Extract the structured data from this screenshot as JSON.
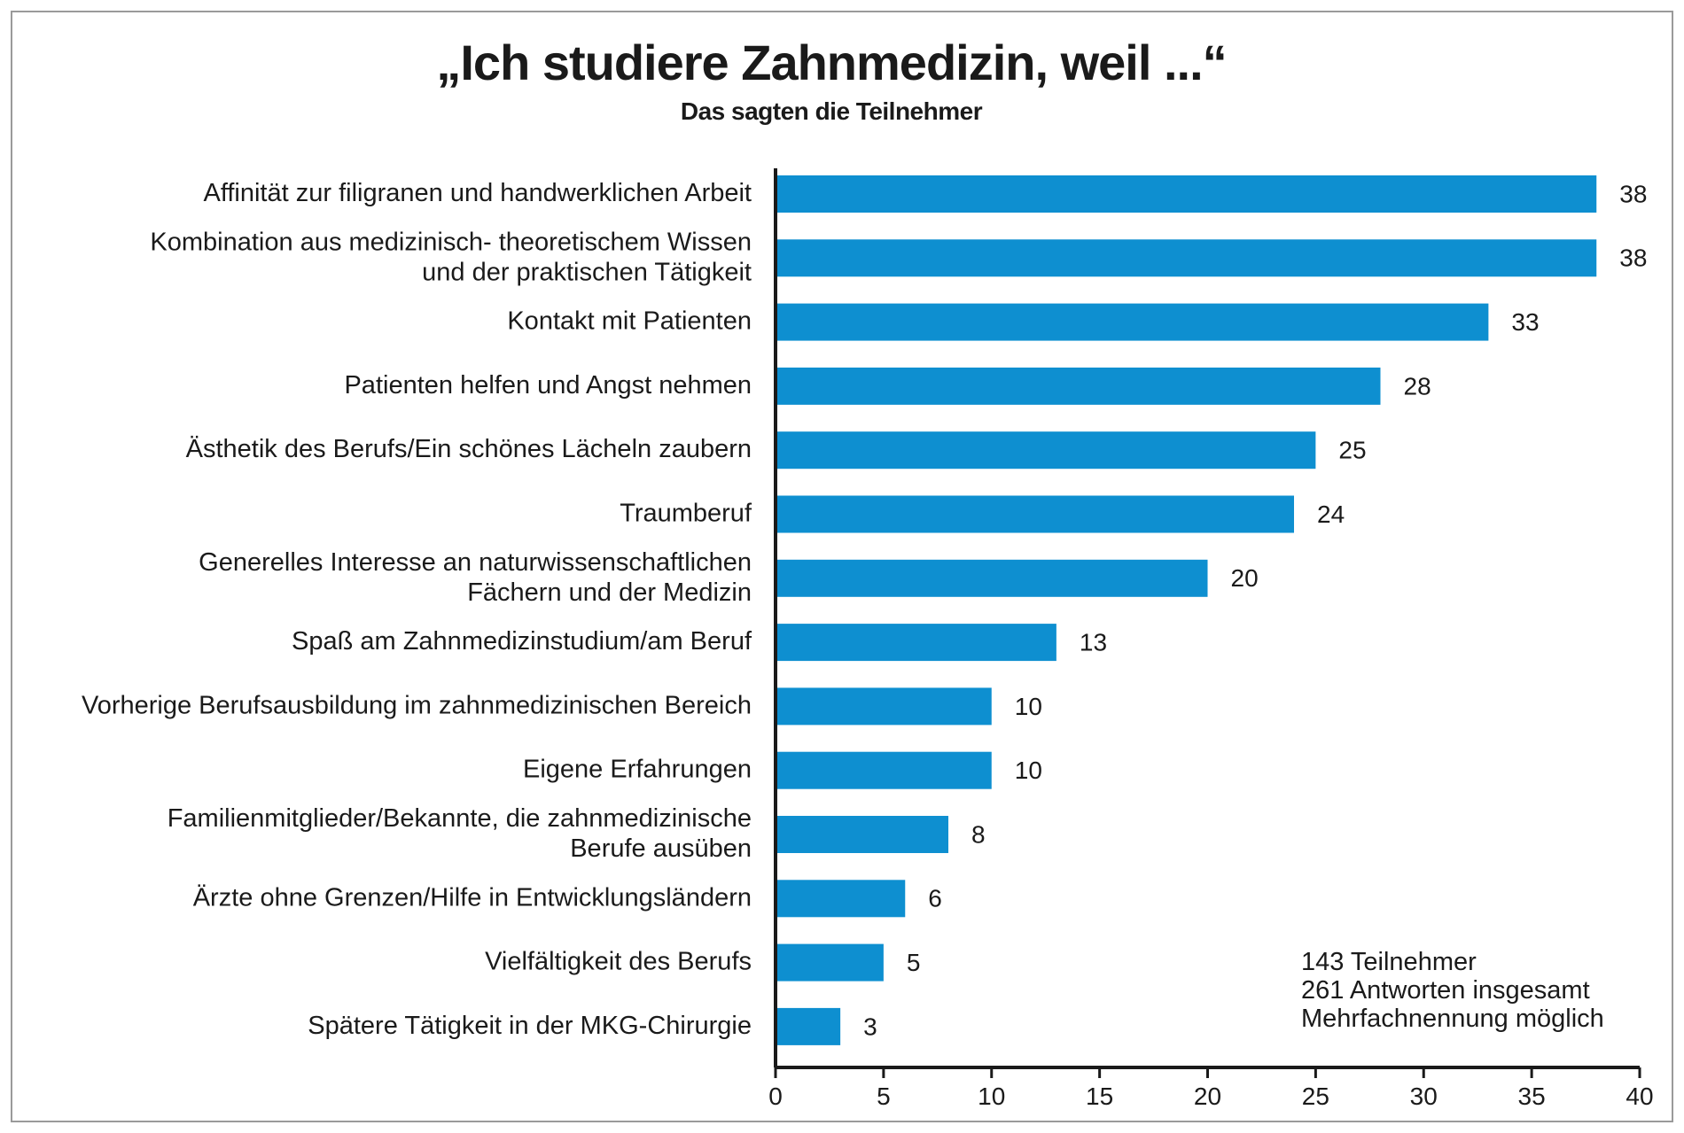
{
  "chart_data": {
    "type": "bar",
    "orientation": "horizontal",
    "title": "„Ich studiere Zahnmedizin, weil ...“",
    "subtitle": "Das sagten die Teilnehmer",
    "categories": [
      "Affinität zur filigranen und handwerklichen Arbeit",
      "Kombination aus medizinisch- theoretischem Wissen\nund der praktischen Tätigkeit",
      "Kontakt mit Patienten",
      "Patienten helfen und Angst nehmen",
      "Ästhetik des Berufs/Ein schönes Lächeln zaubern",
      "Traumberuf",
      "Generelles Interesse an naturwissenschaftlichen\nFächern und der Medizin",
      "Spaß am Zahnmedizinstudium/am Beruf",
      "Vorherige Berufsausbildung im zahnmedizinischen Bereich",
      "Eigene Erfahrungen",
      "Familienmitglieder/Bekannte, die zahnmedizinische\nBerufe ausüben",
      "Ärzte ohne Grenzen/Hilfe in Entwicklungsländern",
      "Vielfältigkeit des Berufs",
      "Spätere Tätigkeit in der MKG-Chirurgie"
    ],
    "values": [
      38,
      38,
      33,
      28,
      25,
      24,
      20,
      13,
      10,
      10,
      8,
      6,
      5,
      3
    ],
    "xlim": [
      0,
      40
    ],
    "xticks": [
      0,
      5,
      10,
      15,
      20,
      25,
      30,
      35,
      40
    ],
    "bar_color": "#0e8fd0",
    "grid": false,
    "xlabel": "",
    "ylabel": ""
  },
  "note_lines": [
    "143 Teilnehmer",
    "261 Antworten insgesamt",
    "Mehrfachnennung möglich"
  ]
}
